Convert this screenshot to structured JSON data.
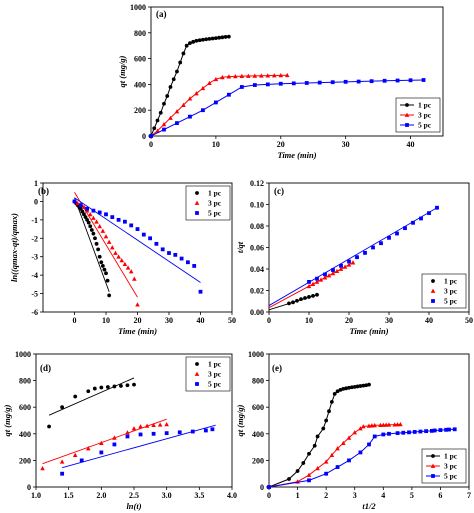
{
  "colors": {
    "black_series": "#000000",
    "red_series": "#ff0000",
    "blue_series": "#0000ff",
    "axis": "#000000"
  },
  "chart_data": [
    {
      "id": "a",
      "type": "line",
      "panel_label": "(a)",
      "xlabel": "Time (min)",
      "ylabel": "qt (mg/g)",
      "xlim": [
        0,
        45
      ],
      "ylim": [
        0,
        1000
      ],
      "xticks": [
        0,
        10,
        20,
        30,
        40
      ],
      "yticks": [
        0,
        200,
        400,
        600,
        800,
        1000
      ],
      "legend_position": "bottom-right",
      "series": [
        {
          "name": "1 pc",
          "color": "#000000",
          "marker": "circle",
          "x": [
            0,
            0.5,
            1,
            1.5,
            2,
            2.5,
            3,
            3.5,
            4,
            4.5,
            5,
            5.5,
            6,
            6.5,
            7,
            7.5,
            8,
            8.5,
            9,
            9.5,
            10,
            10.5,
            11,
            11.5,
            12
          ],
          "y": [
            0,
            60,
            120,
            180,
            250,
            310,
            380,
            440,
            500,
            570,
            640,
            700,
            720,
            730,
            738,
            742,
            746,
            750,
            753,
            756,
            759,
            762,
            765,
            768,
            770
          ]
        },
        {
          "name": "3 pc",
          "color": "#ff0000",
          "marker": "triangle",
          "x": [
            0,
            1,
            2,
            3,
            4,
            5,
            6,
            7,
            8,
            9,
            10,
            11,
            12,
            13,
            14,
            15,
            16,
            17,
            18,
            19,
            20,
            21
          ],
          "y": [
            0,
            40,
            90,
            140,
            190,
            240,
            290,
            330,
            370,
            410,
            440,
            455,
            460,
            462,
            464,
            465,
            466,
            467,
            468,
            469,
            470,
            471
          ]
        },
        {
          "name": "5 pc",
          "color": "#0000ff",
          "marker": "square",
          "x": [
            0,
            2,
            4,
            6,
            8,
            10,
            12,
            14,
            16,
            18,
            20,
            22,
            24,
            26,
            28,
            30,
            32,
            34,
            36,
            38,
            40,
            42
          ],
          "y": [
            0,
            50,
            100,
            150,
            200,
            260,
            320,
            380,
            395,
            400,
            405,
            408,
            411,
            414,
            417,
            420,
            422,
            425,
            428,
            430,
            432,
            434
          ]
        }
      ],
      "fits": []
    },
    {
      "id": "b",
      "type": "scatter",
      "panel_label": "(b)",
      "xlabel": "Time (min)",
      "ylabel": "ln((qmax-qt)/qmax)",
      "xlim": [
        -10,
        50
      ],
      "ylim": [
        -6,
        1
      ],
      "xticks": [
        0,
        10,
        20,
        30,
        40,
        50
      ],
      "yticks": [
        -6,
        -5,
        -4,
        -3,
        -2,
        -1,
        0,
        1
      ],
      "legend_position": "top-right",
      "series": [
        {
          "name": "1 pc",
          "color": "#000000",
          "marker": "circle",
          "x": [
            0,
            0.5,
            1,
            1.5,
            2,
            2.5,
            3,
            3.5,
            4,
            4.5,
            5,
            5.5,
            6,
            6.5,
            7,
            7.5,
            8,
            8.5,
            9,
            9.5,
            10,
            10.5,
            11
          ],
          "y": [
            0,
            -0.1,
            -0.2,
            -0.3,
            -0.4,
            -0.55,
            -0.7,
            -0.85,
            -1.0,
            -1.15,
            -1.35,
            -1.55,
            -1.75,
            -2.0,
            -2.3,
            -2.6,
            -3.0,
            -3.3,
            -3.5,
            -3.7,
            -3.9,
            -4.3,
            -5.1
          ]
        },
        {
          "name": "3 pc",
          "color": "#ff0000",
          "marker": "triangle",
          "x": [
            1,
            2,
            3,
            4,
            5,
            6,
            7,
            8,
            9,
            10,
            11,
            12,
            13,
            14,
            15,
            16,
            17,
            18,
            19,
            20
          ],
          "y": [
            -0.1,
            -0.2,
            -0.3,
            -0.5,
            -0.7,
            -0.9,
            -1.1,
            -1.35,
            -1.6,
            -1.9,
            -2.2,
            -2.5,
            -2.8,
            -3.0,
            -3.2,
            -3.4,
            -3.6,
            -3.8,
            -4.2,
            -5.6
          ]
        },
        {
          "name": "5 pc",
          "color": "#0000ff",
          "marker": "square",
          "x": [
            0,
            2,
            4,
            6,
            8,
            10,
            12,
            14,
            16,
            18,
            20,
            22,
            24,
            26,
            28,
            30,
            32,
            34,
            36,
            38,
            40
          ],
          "y": [
            0,
            -0.2,
            -0.4,
            -0.5,
            -0.6,
            -0.7,
            -0.85,
            -1.0,
            -1.1,
            -1.3,
            -1.5,
            -1.8,
            -2.0,
            -2.3,
            -2.6,
            -2.8,
            -2.9,
            -3.1,
            -3.3,
            -3.5,
            -4.9
          ]
        }
      ],
      "fits": [
        {
          "color": "#000000",
          "x": [
            0,
            11
          ],
          "y": [
            0.2,
            -4.9
          ]
        },
        {
          "color": "#ff0000",
          "x": [
            0,
            20
          ],
          "y": [
            0.5,
            -5.2
          ]
        },
        {
          "color": "#0000ff",
          "x": [
            0,
            40
          ],
          "y": [
            0.2,
            -4.4
          ]
        }
      ]
    },
    {
      "id": "c",
      "type": "scatter",
      "panel_label": "(c)",
      "xlabel": "Time (min)",
      "ylabel": "t/qt",
      "xlim": [
        0,
        50
      ],
      "ylim": [
        0,
        0.12
      ],
      "xticks": [
        0,
        10,
        20,
        30,
        40,
        50
      ],
      "yticks": [
        0.0,
        0.02,
        0.04,
        0.06,
        0.08,
        0.1,
        0.12
      ],
      "tick_labels_y": [
        "0.00",
        "0.02",
        "0.04",
        "0.06",
        "0.08",
        "0.10",
        "0.12"
      ],
      "legend_position": "bottom-right",
      "series": [
        {
          "name": "1 pc",
          "color": "#000000",
          "marker": "circle",
          "x": [
            5,
            6,
            7,
            8,
            9,
            10,
            11,
            12
          ],
          "y": [
            0.008,
            0.009,
            0.0105,
            0.012,
            0.013,
            0.014,
            0.015,
            0.016
          ]
        },
        {
          "name": "3 pc",
          "color": "#ff0000",
          "marker": "triangle",
          "x": [
            10,
            11,
            12,
            13,
            14,
            15,
            16,
            17,
            18,
            19,
            20,
            21
          ],
          "y": [
            0.024,
            0.026,
            0.028,
            0.03,
            0.032,
            0.034,
            0.036,
            0.038,
            0.04,
            0.042,
            0.044,
            0.046
          ]
        },
        {
          "name": "5 pc",
          "color": "#0000ff",
          "marker": "square",
          "x": [
            10,
            12,
            14,
            16,
            18,
            20,
            22,
            24,
            26,
            28,
            30,
            32,
            34,
            36,
            38,
            40,
            42
          ],
          "y": [
            0.028,
            0.031,
            0.035,
            0.039,
            0.043,
            0.047,
            0.051,
            0.055,
            0.06,
            0.064,
            0.069,
            0.073,
            0.078,
            0.083,
            0.087,
            0.092,
            0.097
          ]
        }
      ],
      "fits": [
        {
          "color": "#000000",
          "x": [
            0,
            12
          ],
          "y": [
            0.002,
            0.016
          ]
        },
        {
          "color": "#ff0000",
          "x": [
            0,
            21
          ],
          "y": [
            0.004,
            0.046
          ]
        },
        {
          "color": "#0000ff",
          "x": [
            0,
            42
          ],
          "y": [
            0.006,
            0.097
          ]
        }
      ]
    },
    {
      "id": "d",
      "type": "scatter",
      "panel_label": "(d)",
      "xlabel": "ln(t)",
      "ylabel": "qt (mg/g)",
      "xlim": [
        1.0,
        4.0
      ],
      "ylim": [
        0,
        1000
      ],
      "xticks": [
        1.0,
        1.5,
        2.0,
        2.5,
        3.0,
        3.5,
        4.0
      ],
      "tick_labels_x": [
        "1.0",
        "1.5",
        "2.0",
        "2.5",
        "3.0",
        "3.5",
        "4.0"
      ],
      "yticks": [
        0,
        200,
        400,
        600,
        800,
        1000
      ],
      "legend_position": "top-right",
      "series": [
        {
          "name": "1 pc",
          "color": "#000000",
          "marker": "circle",
          "x": [
            1.2,
            1.4,
            1.6,
            1.8,
            1.9,
            2.0,
            2.1,
            2.2,
            2.3,
            2.4,
            2.5
          ],
          "y": [
            455,
            600,
            680,
            720,
            740,
            748,
            752,
            756,
            760,
            765,
            770
          ]
        },
        {
          "name": "3 pc",
          "color": "#ff0000",
          "marker": "triangle",
          "x": [
            1.1,
            1.4,
            1.6,
            1.8,
            2.0,
            2.2,
            2.4,
            2.5,
            2.6,
            2.7,
            2.8,
            2.9,
            3.0
          ],
          "y": [
            140,
            190,
            240,
            290,
            330,
            370,
            410,
            440,
            455,
            460,
            465,
            468,
            471
          ]
        },
        {
          "name": "5 pc",
          "color": "#0000ff",
          "marker": "square",
          "x": [
            1.4,
            1.7,
            2.0,
            2.2,
            2.4,
            2.6,
            2.8,
            3.0,
            3.2,
            3.4,
            3.6,
            3.7
          ],
          "y": [
            100,
            200,
            260,
            320,
            380,
            395,
            400,
            405,
            411,
            417,
            425,
            434
          ]
        }
      ],
      "fits": [
        {
          "color": "#000000",
          "x": [
            1.2,
            2.5
          ],
          "y": [
            540,
            820
          ]
        },
        {
          "color": "#ff0000",
          "x": [
            1.1,
            3.0
          ],
          "y": [
            175,
            510
          ]
        },
        {
          "color": "#0000ff",
          "x": [
            1.4,
            3.75
          ],
          "y": [
            145,
            465
          ]
        }
      ]
    },
    {
      "id": "e",
      "type": "line",
      "panel_label": "(e)",
      "xlabel": "t1/2",
      "ylabel": "qt (mg/g)",
      "xlim": [
        0,
        7
      ],
      "ylim": [
        0,
        1000
      ],
      "xticks": [
        0,
        1,
        2,
        3,
        4,
        5,
        6,
        7
      ],
      "yticks": [
        0,
        200,
        400,
        600,
        800,
        1000
      ],
      "legend_position": "bottom-right",
      "series": [
        {
          "name": "1 pc",
          "color": "#000000",
          "marker": "circle",
          "x": [
            0,
            0.7,
            1.0,
            1.2,
            1.4,
            1.6,
            1.7,
            1.9,
            2.0,
            2.1,
            2.2,
            2.3,
            2.4,
            2.5,
            2.6,
            2.7,
            2.8,
            2.9,
            3.0,
            3.1,
            3.2,
            3.3,
            3.4,
            3.5
          ],
          "y": [
            0,
            60,
            120,
            180,
            250,
            310,
            380,
            440,
            500,
            570,
            640,
            700,
            720,
            730,
            738,
            742,
            746,
            750,
            753,
            756,
            759,
            762,
            765,
            770
          ]
        },
        {
          "name": "3 pc",
          "color": "#ff0000",
          "marker": "triangle",
          "x": [
            0,
            1.0,
            1.4,
            1.7,
            2.0,
            2.2,
            2.4,
            2.6,
            2.8,
            3.0,
            3.2,
            3.3,
            3.5,
            3.6,
            3.7,
            3.9,
            4.0,
            4.1,
            4.2,
            4.4,
            4.5,
            4.6
          ],
          "y": [
            0,
            40,
            90,
            140,
            190,
            240,
            290,
            330,
            370,
            410,
            440,
            455,
            460,
            462,
            464,
            465,
            466,
            467,
            468,
            469,
            470,
            471
          ]
        },
        {
          "name": "5 pc",
          "color": "#0000ff",
          "marker": "square",
          "x": [
            0,
            1.4,
            2.0,
            2.4,
            2.8,
            3.2,
            3.5,
            3.7,
            4.0,
            4.2,
            4.5,
            4.7,
            4.9,
            5.1,
            5.3,
            5.5,
            5.7,
            5.8,
            6.0,
            6.2,
            6.3,
            6.5
          ],
          "y": [
            0,
            50,
            100,
            150,
            200,
            260,
            320,
            380,
            395,
            400,
            405,
            408,
            411,
            414,
            417,
            420,
            422,
            425,
            428,
            430,
            432,
            434
          ]
        }
      ],
      "fits": []
    }
  ]
}
